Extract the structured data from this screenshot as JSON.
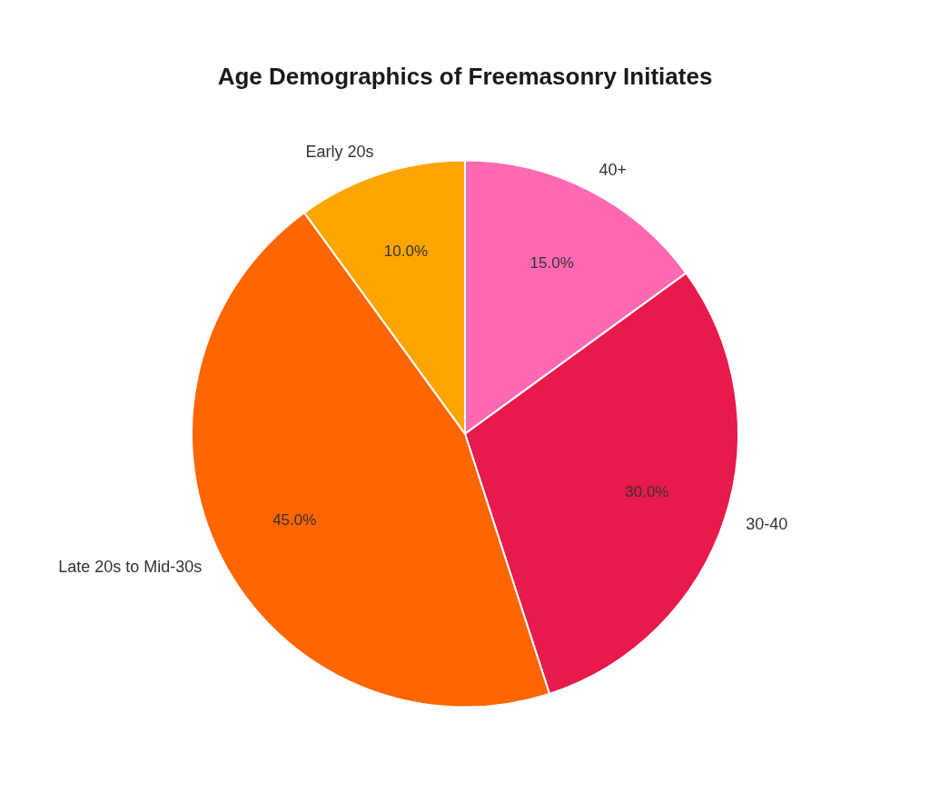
{
  "chart_data": {
    "type": "pie",
    "title": "Age Demographics of Freemasonry Initiates",
    "categories": [
      "40+",
      "30-40",
      "Late 20s to Mid-30s",
      "Early 20s"
    ],
    "values": [
      15.0,
      30.0,
      45.0,
      10.0
    ],
    "value_labels": [
      "15.0%",
      "30.0%",
      "45.0%",
      "10.0%"
    ],
    "colors": [
      "#FF69B4",
      "#E8194B",
      "#FF6500",
      "#FFA500"
    ],
    "data_labels": true
  }
}
